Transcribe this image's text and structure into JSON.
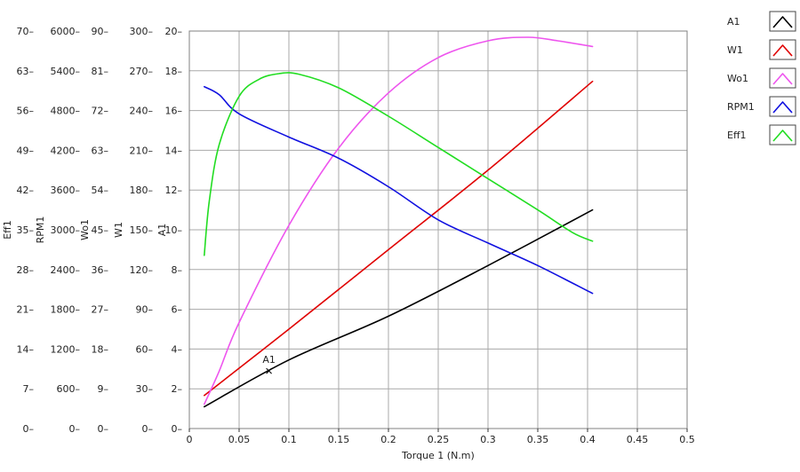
{
  "chart_data": {
    "type": "line",
    "title": "",
    "xlabel": "Torque 1 (N.m)",
    "xlim": [
      0,
      0.5
    ],
    "x_ticks": [
      "0",
      "0.05",
      "0.1",
      "0.15",
      "0.2",
      "0.25",
      "0.3",
      "0.35",
      "0.4",
      "0.45",
      "0.5"
    ],
    "grid": true,
    "legend_placement": "right",
    "y_axes": [
      {
        "name": "Eff1",
        "lim": [
          0,
          70
        ],
        "ticks": [
          "0",
          "7",
          "14",
          "21",
          "28",
          "35",
          "42",
          "49",
          "56",
          "63",
          "70"
        ]
      },
      {
        "name": "RPM1",
        "lim": [
          0,
          6000
        ],
        "ticks": [
          "0",
          "600",
          "1200",
          "1800",
          "2400",
          "3000",
          "3600",
          "4200",
          "4800",
          "5400",
          "6000"
        ]
      },
      {
        "name": "Wo1",
        "lim": [
          0,
          90
        ],
        "ticks": [
          "0",
          "9",
          "18",
          "27",
          "36",
          "45",
          "54",
          "63",
          "72",
          "81",
          "90"
        ]
      },
      {
        "name": "W1",
        "lim": [
          0,
          300
        ],
        "ticks": [
          "0",
          "30",
          "60",
          "90",
          "120",
          "150",
          "180",
          "210",
          "240",
          "270",
          "300"
        ]
      },
      {
        "name": "A1",
        "lim": [
          0,
          20
        ],
        "ticks": [
          "0",
          "2",
          "4",
          "6",
          "8",
          "10",
          "12",
          "14",
          "16",
          "18",
          "20"
        ]
      }
    ],
    "series": [
      {
        "name": "A1",
        "color": "#000000",
        "axis": "A1",
        "x": [
          0.015,
          0.1,
          0.2,
          0.3,
          0.405
        ],
        "y": [
          1.1,
          3.45,
          5.65,
          8.2,
          11.0
        ]
      },
      {
        "name": "W1",
        "color": "#e00000",
        "axis": "W1",
        "x": [
          0.015,
          0.1,
          0.2,
          0.3,
          0.405
        ],
        "y": [
          25,
          75,
          135,
          195,
          262
        ]
      },
      {
        "name": "Wo1",
        "color": "#ee55ee",
        "axis": "Wo1",
        "x": [
          0.015,
          0.03,
          0.05,
          0.1,
          0.15,
          0.2,
          0.25,
          0.3,
          0.34,
          0.37,
          0.405
        ],
        "y": [
          5.5,
          13,
          24,
          46,
          63.5,
          76,
          84,
          87.8,
          88.6,
          87.8,
          86.5
        ]
      },
      {
        "name": "RPM1",
        "color": "#1010e0",
        "axis": "RPM1",
        "x": [
          0.015,
          0.03,
          0.05,
          0.1,
          0.15,
          0.2,
          0.25,
          0.3,
          0.35,
          0.405
        ],
        "y": [
          5160,
          5040,
          4750,
          4400,
          4080,
          3650,
          3150,
          2800,
          2460,
          2040
        ]
      },
      {
        "name": "Eff1",
        "color": "#22dd22",
        "axis": "Eff1",
        "x": [
          0.015,
          0.02,
          0.03,
          0.05,
          0.07,
          0.09,
          0.11,
          0.15,
          0.2,
          0.25,
          0.3,
          0.35,
          0.385,
          0.405
        ],
        "y": [
          30.5,
          40,
          50,
          58.5,
          61.5,
          62.5,
          62.4,
          60,
          55,
          49.5,
          44,
          38.5,
          34.5,
          33
        ]
      }
    ],
    "annotations": [
      {
        "text": "A1",
        "series": "A1",
        "x": 0.08
      }
    ]
  }
}
